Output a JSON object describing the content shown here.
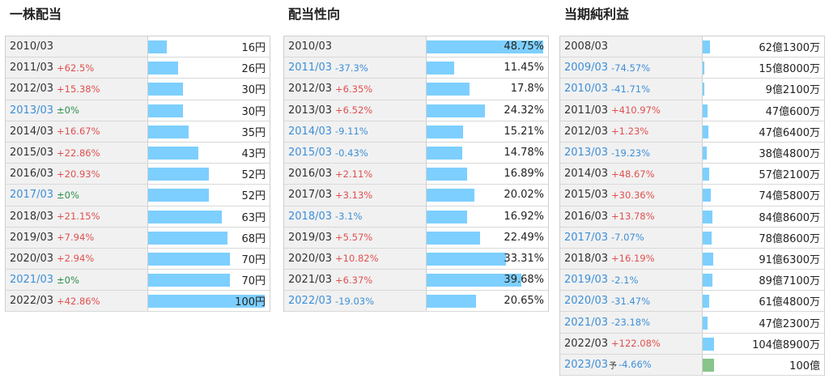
{
  "chart_data": [
    {
      "type": "table",
      "title": "一株配当",
      "unit": "円",
      "max": 100,
      "bar_color": "#7dcfff",
      "rows": [
        {
          "year": "2010/03",
          "change": "",
          "dir": "base",
          "value": 16,
          "display": "16円"
        },
        {
          "year": "2011/03",
          "change": "+62.5%",
          "dir": "up",
          "value": 26,
          "display": "26円"
        },
        {
          "year": "2012/03",
          "change": "+15.38%",
          "dir": "up",
          "value": 30,
          "display": "30円"
        },
        {
          "year": "2013/03",
          "change": "±0%",
          "dir": "flat",
          "value": 30,
          "display": "30円"
        },
        {
          "year": "2014/03",
          "change": "+16.67%",
          "dir": "up",
          "value": 35,
          "display": "35円"
        },
        {
          "year": "2015/03",
          "change": "+22.86%",
          "dir": "up",
          "value": 43,
          "display": "43円"
        },
        {
          "year": "2016/03",
          "change": "+20.93%",
          "dir": "up",
          "value": 52,
          "display": "52円"
        },
        {
          "year": "2017/03",
          "change": "±0%",
          "dir": "flat",
          "value": 52,
          "display": "52円"
        },
        {
          "year": "2018/03",
          "change": "+21.15%",
          "dir": "up",
          "value": 63,
          "display": "63円"
        },
        {
          "year": "2019/03",
          "change": "+7.94%",
          "dir": "up",
          "value": 68,
          "display": "68円"
        },
        {
          "year": "2020/03",
          "change": "+2.94%",
          "dir": "up",
          "value": 70,
          "display": "70円"
        },
        {
          "year": "2021/03",
          "change": "±0%",
          "dir": "flat",
          "value": 70,
          "display": "70円"
        },
        {
          "year": "2022/03",
          "change": "+42.86%",
          "dir": "up",
          "value": 100,
          "display": "100円"
        }
      ]
    },
    {
      "type": "table",
      "title": "配当性向",
      "unit": "%",
      "max": 48.75,
      "bar_color": "#7dcfff",
      "rows": [
        {
          "year": "2010/03",
          "change": "",
          "dir": "base",
          "value": 48.75,
          "display": "48.75%"
        },
        {
          "year": "2011/03",
          "change": "-37.3%",
          "dir": "down",
          "value": 11.45,
          "display": "11.45%"
        },
        {
          "year": "2012/03",
          "change": "+6.35%",
          "dir": "up",
          "value": 17.8,
          "display": "17.8%"
        },
        {
          "year": "2013/03",
          "change": "+6.52%",
          "dir": "up",
          "value": 24.32,
          "display": "24.32%"
        },
        {
          "year": "2014/03",
          "change": "-9.11%",
          "dir": "down",
          "value": 15.21,
          "display": "15.21%"
        },
        {
          "year": "2015/03",
          "change": "-0.43%",
          "dir": "down",
          "value": 14.78,
          "display": "14.78%"
        },
        {
          "year": "2016/03",
          "change": "+2.11%",
          "dir": "up",
          "value": 16.89,
          "display": "16.89%"
        },
        {
          "year": "2017/03",
          "change": "+3.13%",
          "dir": "up",
          "value": 20.02,
          "display": "20.02%"
        },
        {
          "year": "2018/03",
          "change": "-3.1%",
          "dir": "down",
          "value": 16.92,
          "display": "16.92%"
        },
        {
          "year": "2019/03",
          "change": "+5.57%",
          "dir": "up",
          "value": 22.49,
          "display": "22.49%"
        },
        {
          "year": "2020/03",
          "change": "+10.82%",
          "dir": "up",
          "value": 33.31,
          "display": "33.31%"
        },
        {
          "year": "2021/03",
          "change": "+6.37%",
          "dir": "up",
          "value": 39.68,
          "display": "39.68%"
        },
        {
          "year": "2022/03",
          "change": "-19.03%",
          "dir": "down",
          "value": 20.65,
          "display": "20.65%"
        }
      ]
    },
    {
      "type": "table",
      "title": "当期純利益",
      "unit": "円",
      "max": 1049,
      "bar_color": "#7dcfff",
      "forecast_color": "#86c48a",
      "rows": [
        {
          "year": "2008/03",
          "change": "",
          "dir": "base",
          "value": 62.13,
          "display": "62億1300万"
        },
        {
          "year": "2009/03",
          "change": "-74.57%",
          "dir": "down",
          "value": 15.8,
          "display": "15億8000万"
        },
        {
          "year": "2010/03",
          "change": "-41.71%",
          "dir": "down",
          "value": 9.21,
          "display": "9億2100万"
        },
        {
          "year": "2011/03",
          "change": "+410.97%",
          "dir": "up",
          "value": 47.06,
          "display": "47億600万"
        },
        {
          "year": "2012/03",
          "change": "+1.23%",
          "dir": "up",
          "value": 47.64,
          "display": "47億6400万"
        },
        {
          "year": "2013/03",
          "change": "-19.23%",
          "dir": "down",
          "value": 38.48,
          "display": "38億4800万"
        },
        {
          "year": "2014/03",
          "change": "+48.67%",
          "dir": "up",
          "value": 57.21,
          "display": "57億2100万"
        },
        {
          "year": "2015/03",
          "change": "+30.36%",
          "dir": "up",
          "value": 74.58,
          "display": "74億5800万"
        },
        {
          "year": "2016/03",
          "change": "+13.78%",
          "dir": "up",
          "value": 84.86,
          "display": "84億8600万"
        },
        {
          "year": "2017/03",
          "change": "-7.07%",
          "dir": "down",
          "value": 78.86,
          "display": "78億8600万"
        },
        {
          "year": "2018/03",
          "change": "+16.19%",
          "dir": "up",
          "value": 91.63,
          "display": "91億6300万"
        },
        {
          "year": "2019/03",
          "change": "-2.1%",
          "dir": "down",
          "value": 89.71,
          "display": "89億7100万"
        },
        {
          "year": "2020/03",
          "change": "-31.47%",
          "dir": "down",
          "value": 61.48,
          "display": "61億4800万"
        },
        {
          "year": "2021/03",
          "change": "-23.18%",
          "dir": "down",
          "value": 47.23,
          "display": "47億2300万"
        },
        {
          "year": "2022/03",
          "change": "+122.08%",
          "dir": "up",
          "value": 104.89,
          "display": "104億8900万"
        },
        {
          "year": "2023/03",
          "change": "-4.66%",
          "dir": "down",
          "value": 100,
          "display": "100億",
          "forecast": true,
          "forecast_mark": "予"
        }
      ]
    }
  ]
}
